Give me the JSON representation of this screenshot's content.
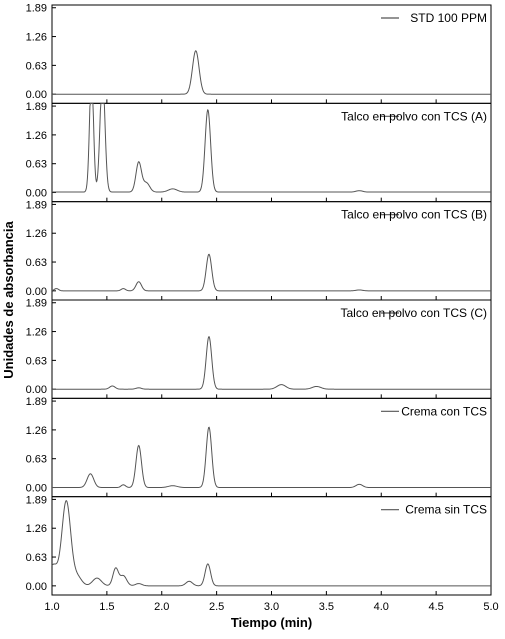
{
  "chart_data": {
    "type": "line",
    "xlabel": "Tiempo (min)",
    "ylabel": "Unidades de absorbancia",
    "xlim": [
      1.0,
      5.0
    ],
    "ylim": [
      -0.2,
      1.95
    ],
    "x_ticks": [
      "1.0",
      "1.5",
      "2.0",
      "2.5",
      "3.0",
      "3.5",
      "4.0",
      "4.5",
      "5.0"
    ],
    "y_ticks": [
      "0.00",
      "0.63",
      "1.26",
      "1.89"
    ],
    "line_color": "#555555",
    "legend_position": "top-right",
    "panels": [
      {
        "legend": "STD 100 PPM",
        "baseline": 0.0,
        "peaks": [
          {
            "x": 2.31,
            "height": 0.95,
            "width": 0.03
          }
        ]
      },
      {
        "legend": "Talco en polvo con TCS (A)",
        "baseline": 0.01,
        "peaks": [
          {
            "x": 1.36,
            "height": 2.6,
            "width": 0.018
          },
          {
            "x": 1.46,
            "height": 2.6,
            "width": 0.022
          },
          {
            "x": 1.79,
            "height": 0.65,
            "width": 0.025
          },
          {
            "x": 1.86,
            "height": 0.2,
            "width": 0.03
          },
          {
            "x": 2.1,
            "height": 0.07,
            "width": 0.04
          },
          {
            "x": 2.42,
            "height": 1.8,
            "width": 0.025
          },
          {
            "x": 3.8,
            "height": 0.03,
            "width": 0.03
          }
        ]
      },
      {
        "legend": "Talco en polvo con TCS (B)",
        "baseline": 0.0,
        "peaks": [
          {
            "x": 1.04,
            "height": 0.05,
            "width": 0.02
          },
          {
            "x": 1.65,
            "height": 0.05,
            "width": 0.02
          },
          {
            "x": 1.79,
            "height": 0.2,
            "width": 0.025
          },
          {
            "x": 2.43,
            "height": 0.8,
            "width": 0.025
          },
          {
            "x": 3.8,
            "height": 0.02,
            "width": 0.03
          }
        ]
      },
      {
        "legend": "Talco en polvo con TCS (C)",
        "baseline": 0.0,
        "peaks": [
          {
            "x": 1.55,
            "height": 0.07,
            "width": 0.025
          },
          {
            "x": 1.79,
            "height": 0.03,
            "width": 0.025
          },
          {
            "x": 2.43,
            "height": 1.15,
            "width": 0.025
          },
          {
            "x": 3.09,
            "height": 0.1,
            "width": 0.04
          },
          {
            "x": 3.41,
            "height": 0.06,
            "width": 0.04
          }
        ]
      },
      {
        "legend": "Crema con TCS",
        "baseline": 0.0,
        "peaks": [
          {
            "x": 1.35,
            "height": 0.3,
            "width": 0.03
          },
          {
            "x": 1.65,
            "height": 0.06,
            "width": 0.02
          },
          {
            "x": 1.79,
            "height": 0.92,
            "width": 0.025
          },
          {
            "x": 2.1,
            "height": 0.04,
            "width": 0.04
          },
          {
            "x": 2.43,
            "height": 1.32,
            "width": 0.025
          },
          {
            "x": 3.8,
            "height": 0.07,
            "width": 0.03
          }
        ]
      },
      {
        "legend": "Crema sin TCS",
        "baseline": 0.0,
        "peaks": [
          {
            "x": 1.01,
            "height": 0.45,
            "width": 0.04
          },
          {
            "x": 1.13,
            "height": 1.85,
            "width": 0.04
          },
          {
            "x": 1.23,
            "height": 0.2,
            "width": 0.04
          },
          {
            "x": 1.41,
            "height": 0.17,
            "width": 0.04
          },
          {
            "x": 1.58,
            "height": 0.38,
            "width": 0.025
          },
          {
            "x": 1.65,
            "height": 0.22,
            "width": 0.03
          },
          {
            "x": 1.79,
            "height": 0.05,
            "width": 0.03
          },
          {
            "x": 2.25,
            "height": 0.1,
            "width": 0.03
          },
          {
            "x": 2.42,
            "height": 0.48,
            "width": 0.025
          }
        ]
      }
    ]
  }
}
